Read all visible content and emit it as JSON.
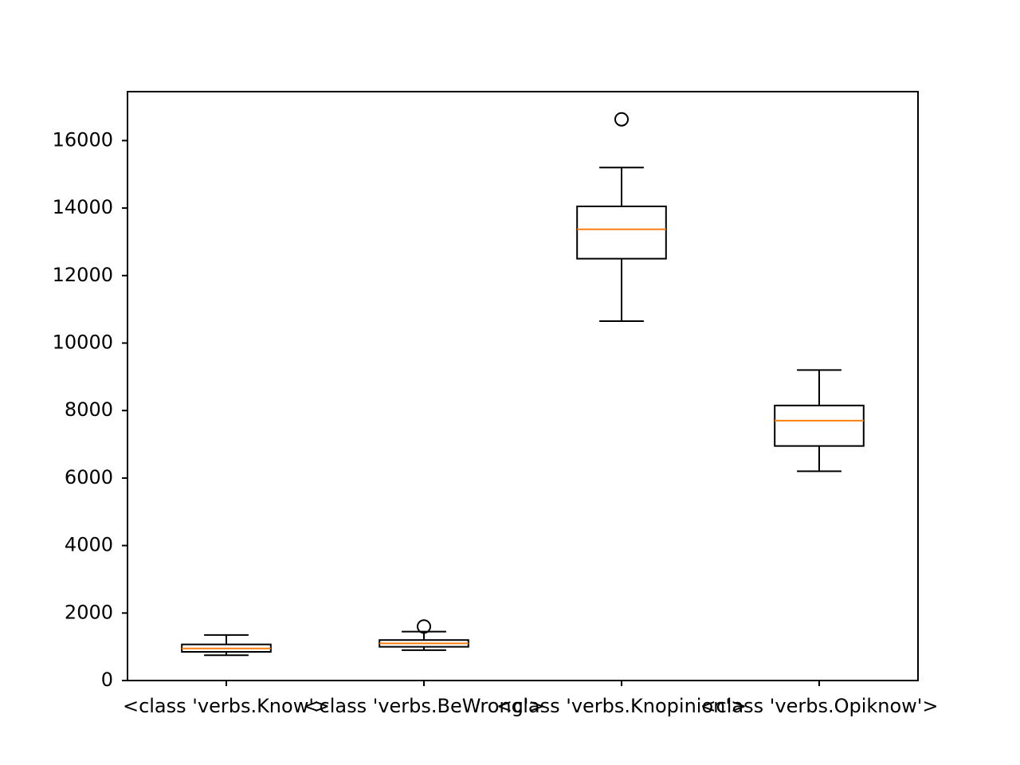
{
  "chart_data": {
    "type": "boxplot",
    "title": "",
    "xlabel": "",
    "ylabel": "",
    "ylim": [
      0,
      17450
    ],
    "yticks": [
      0,
      2000,
      4000,
      6000,
      8000,
      10000,
      12000,
      14000,
      16000
    ],
    "ytick_labels": [
      "0",
      "2000",
      "4000",
      "6000",
      "8000",
      "10000",
      "12000",
      "14000",
      "16000"
    ],
    "categories": [
      "<class 'verbs.Know'>",
      "<class 'verbs.BeWrong'>",
      "<class 'verbs.Knopinion'>",
      "<class 'verbs.Opiknow'>"
    ],
    "boxes": [
      {
        "whisker_low": 750,
        "q1": 850,
        "median": 950,
        "q3": 1070,
        "whisker_high": 1350,
        "outliers": []
      },
      {
        "whisker_low": 900,
        "q1": 1000,
        "median": 1100,
        "q3": 1200,
        "whisker_high": 1450,
        "outliers": [
          1600
        ]
      },
      {
        "whisker_low": 10650,
        "q1": 12500,
        "median": 13370,
        "q3": 14050,
        "whisker_high": 15200,
        "outliers": [
          16630
        ]
      },
      {
        "whisker_low": 6200,
        "q1": 6950,
        "median": 7700,
        "q3": 8150,
        "whisker_high": 9200,
        "outliers": []
      }
    ],
    "colors": {
      "box": "#000000",
      "median": "#ff7f0e",
      "outlier": "#000000"
    },
    "grid": false
  }
}
